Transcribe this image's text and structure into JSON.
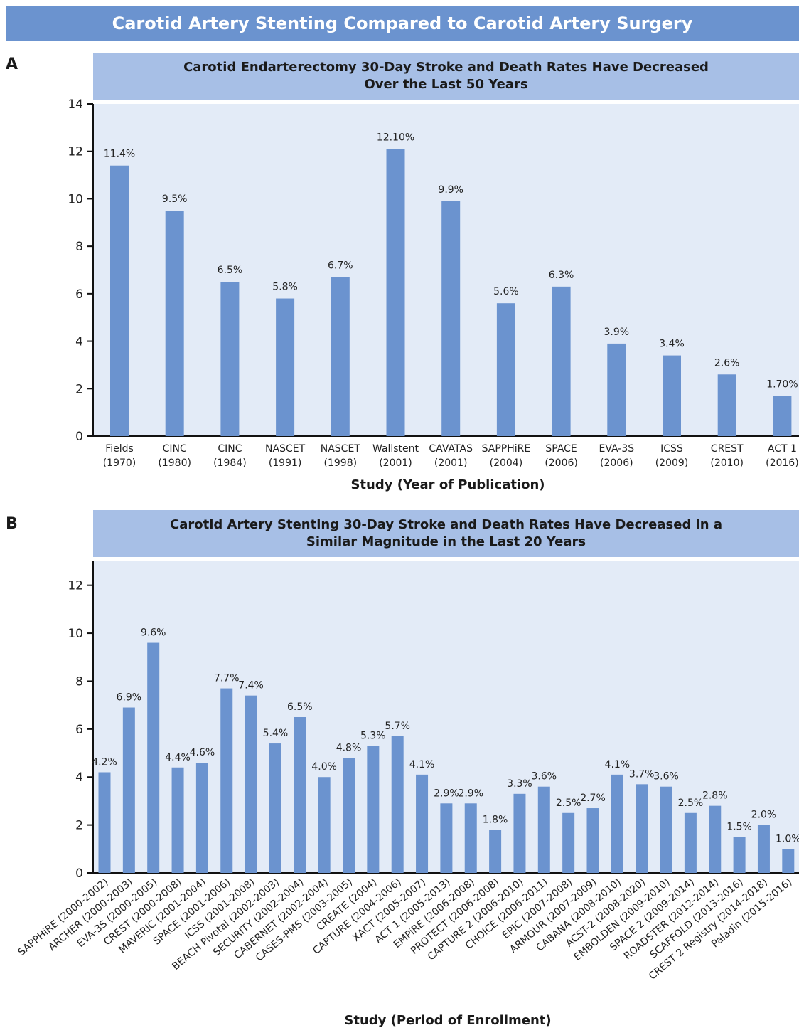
{
  "figure_title": "Carotid Artery Stenting Compared to Carotid Artery Surgery",
  "colors": {
    "banner": "#6b93cf",
    "header": "#a7bfe6",
    "plot_bg": "#e3ebf7",
    "bar": "#6b93cf"
  },
  "panels": [
    {
      "letter": "A",
      "title_lines": [
        "Carotid Endarterectomy 30-Day Stroke and Death Rates Have Decreased",
        "Over the Last 50 Years"
      ]
    },
    {
      "letter": "B",
      "title_lines": [
        "Carotid Artery Stenting 30-Day Stroke and Death Rates Have Decreased in a",
        "Similar Magnitude in the Last 20 Years"
      ]
    }
  ],
  "chart_data": [
    {
      "type": "bar",
      "title": "Carotid Endarterectomy 30-Day Stroke and Death Rates Have Decreased Over the Last 50 Years",
      "xlabel": "Study (Year of Publication)",
      "ylabel": "",
      "ylim": [
        0,
        14
      ],
      "yticks": [
        0,
        2,
        4,
        6,
        8,
        10,
        12,
        14
      ],
      "categories": [
        [
          "Fields",
          "(1970)"
        ],
        [
          "CINC",
          "(1980)"
        ],
        [
          "CINC",
          "(1984)"
        ],
        [
          "NASCET",
          "(1991)"
        ],
        [
          "NASCET",
          "(1998)"
        ],
        [
          "Wallstent",
          "(2001)"
        ],
        [
          "CAVATAS",
          "(2001)"
        ],
        [
          "SAPPHiRE",
          "(2004)"
        ],
        [
          "SPACE",
          "(2006)"
        ],
        [
          "EVA-3S",
          "(2006)"
        ],
        [
          "ICSS",
          "(2009)"
        ],
        [
          "CREST",
          "(2010)"
        ],
        [
          "ACT 1",
          "(2016)"
        ]
      ],
      "values": [
        11.4,
        9.5,
        6.5,
        5.8,
        6.7,
        12.1,
        9.9,
        5.6,
        6.3,
        3.9,
        3.4,
        2.6,
        1.7
      ],
      "labels": [
        "11.4%",
        "9.5%",
        "6.5%",
        "5.8%",
        "6.7%",
        "12.10%",
        "9.9%",
        "5.6%",
        "6.3%",
        "3.9%",
        "3.4%",
        "2.6%",
        "1.70%"
      ],
      "grid": false,
      "legend": "none"
    },
    {
      "type": "bar",
      "title": "Carotid Artery Stenting 30-Day Stroke and Death Rates Have Decreased in a Similar Magnitude in the Last 20 Years",
      "xlabel": "Study (Period of Enrollment)",
      "ylabel": "",
      "ylim": [
        0,
        13
      ],
      "yticks": [
        0,
        2,
        4,
        6,
        8,
        10,
        12
      ],
      "categories": [
        "SAPPHiRE (2000-2002)",
        "ARCHER (2000-2003)",
        "EVA-3S (2000-2005)",
        "CREST (2000-2008)",
        "MAVERIC (2001-2004)",
        "SPACE (2001-2006)",
        "ICSS (2001-2008)",
        "BEACH Pivotal (2002-2003)",
        "SECURITY (2002-2004)",
        "CABERNET (2002-2004)",
        "CASES-PMS (2003-2005)",
        "CREATE (2004)",
        "CAPTURE (2004-2006)",
        "XACT (2005-2007)",
        "ACT 1 (2005-2013)",
        "EMPiRE (2006-2008)",
        "PROTECT (2006-2008)",
        "CAPTURE 2 (2006-2010)",
        "CHOICE (2006-2011)",
        "EPIC (2007-2008)",
        "ARMOUR (2007-2009)",
        "CABANA (2008-2010)",
        "ACST-2 (2008-2020)",
        "EMBOLDEN (2009-2010)",
        "SPACE 2 (2009-2014)",
        "ROADSTER (2012-2014)",
        "SCAFFOLD (2013-2016)",
        "CREST 2 Registry (2014-2018)",
        "Paladin (2015-2016)"
      ],
      "values": [
        4.2,
        6.9,
        9.6,
        4.4,
        4.6,
        7.7,
        7.4,
        5.4,
        6.5,
        4.0,
        4.8,
        5.3,
        5.7,
        4.1,
        2.9,
        2.9,
        1.8,
        3.3,
        3.6,
        2.5,
        2.7,
        4.1,
        3.7,
        3.6,
        2.5,
        2.8,
        1.5,
        2.0,
        1.0
      ],
      "labels": [
        "4.2%",
        "6.9%",
        "9.6%",
        "4.4%",
        "4.6%",
        "7.7%",
        "7.4%",
        "5.4%",
        "6.5%",
        "4.0%",
        "4.8%",
        "5.3%",
        "5.7%",
        "4.1%",
        "2.9%",
        "2.9%",
        "1.8%",
        "3.3%",
        "3.6%",
        "2.5%",
        "2.7%",
        "4.1%",
        "3.7%",
        "3.6%",
        "2.5%",
        "2.8%",
        "1.5%",
        "2.0%",
        "1.0%"
      ],
      "grid": false,
      "legend": "none"
    }
  ]
}
